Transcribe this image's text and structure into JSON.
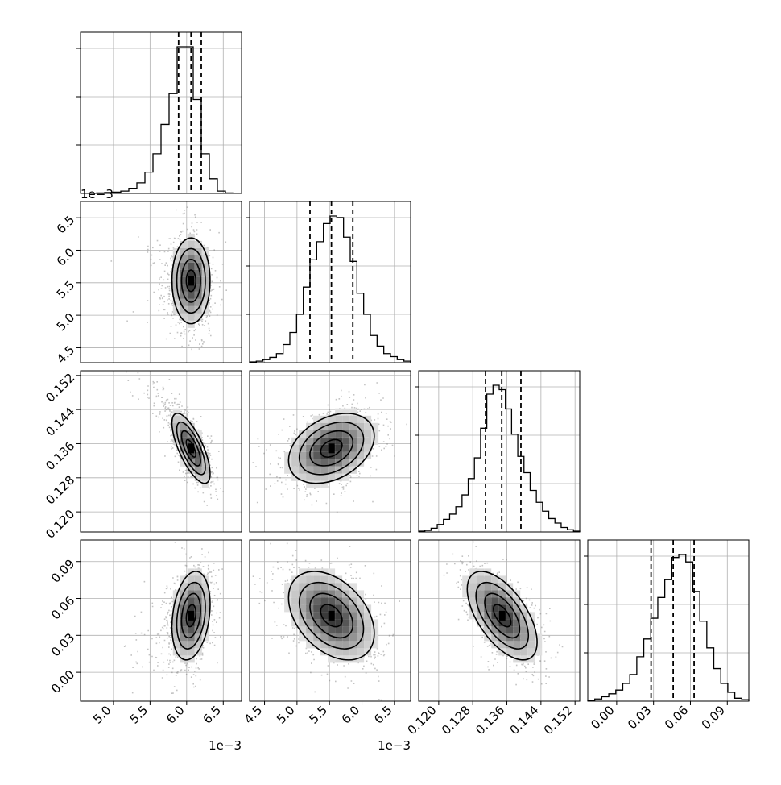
{
  "chart_data": {
    "type": "corner",
    "parameters": [
      {
        "range": [
          4.55,
          6.75
        ],
        "ticks": [
          5.0,
          5.5,
          6.0,
          6.5
        ],
        "tick_labels": [
          "5.0",
          "5.5",
          "6.0",
          "6.5"
        ],
        "offset_label": "1e−3",
        "quantiles": [
          5.89,
          6.06,
          6.2
        ],
        "mean": 6.06,
        "sd": 0.13,
        "skew": "left"
      },
      {
        "range": [
          4.27,
          6.75
        ],
        "ticks": [
          4.5,
          5.0,
          5.5,
          6.0,
          6.5
        ],
        "tick_labels": [
          "4.5",
          "5.0",
          "5.5",
          "6.0",
          "6.5"
        ],
        "offset_label": "1e−3",
        "quantiles": [
          5.2,
          5.53,
          5.86
        ],
        "mean": 5.53,
        "sd": 0.33,
        "skew": "none"
      },
      {
        "range": [
          0.1153,
          0.1531
        ],
        "ticks": [
          0.12,
          0.128,
          0.136,
          0.144,
          0.152
        ],
        "tick_labels": [
          "0.120",
          "0.128",
          "0.136",
          "0.144",
          "0.152"
        ],
        "offset_label": "",
        "quantiles": [
          0.131,
          0.1348,
          0.1393
        ],
        "mean": 0.1349,
        "sd": 0.0041,
        "skew": "none"
      },
      {
        "range": [
          -0.0235,
          0.1075
        ],
        "ticks": [
          0.0,
          0.03,
          0.06,
          0.09
        ],
        "tick_labels": [
          "0.00",
          "0.03",
          "0.06",
          "0.09"
        ],
        "offset_label": "",
        "quantiles": [
          0.028,
          0.046,
          0.063
        ],
        "mean": 0.046,
        "sd": 0.018,
        "skew": "none"
      }
    ],
    "histograms": [
      {
        "edges_range": [
          4.55,
          6.75
        ],
        "counts": [
          0.1,
          0.2,
          0.3,
          0.6,
          0.9,
          1.6,
          3.5,
          7.2,
          14.5,
          27,
          47,
          68,
          100,
          100,
          64,
          27,
          10,
          1.6,
          0.3,
          0.1
        ]
      },
      {
        "edges_range": [
          4.27,
          6.75
        ],
        "counts": [
          0.5,
          1,
          2,
          3.5,
          6,
          12,
          20,
          32,
          50,
          68,
          80,
          92,
          97,
          96,
          83,
          67,
          46,
          32,
          18,
          11,
          6,
          4,
          2,
          1
        ]
      },
      {
        "edges_range": [
          0.1153,
          0.1531
        ],
        "counts": [
          0.5,
          1,
          2.5,
          5,
          8.5,
          12,
          17,
          25,
          36,
          50,
          70,
          93,
          99,
          96,
          83,
          66,
          51,
          40,
          28,
          20,
          14,
          9,
          6,
          3,
          1.5,
          0.5
        ]
      },
      {
        "edges_range": [
          -0.0235,
          0.1075
        ],
        "counts": [
          0.5,
          1.5,
          3,
          5,
          7.5,
          12,
          18,
          30,
          42,
          56,
          70,
          82,
          97,
          99,
          94,
          74,
          54,
          36,
          22,
          12,
          6,
          2,
          1
        ]
      }
    ],
    "correlations": [
      {
        "pair": [
          1,
          0
        ],
        "rho": 0.0
      },
      {
        "pair": [
          2,
          0
        ],
        "rho": -0.72
      },
      {
        "pair": [
          2,
          1
        ],
        "rho": 0.35
      },
      {
        "pair": [
          3,
          0
        ],
        "rho": 0.25
      },
      {
        "pair": [
          3,
          1
        ],
        "rho": -0.4
      },
      {
        "pair": [
          3,
          2
        ],
        "rho": -0.6
      }
    ],
    "contour_levels": [
      0.5,
      1.0,
      1.5,
      2.0
    ],
    "grid": true,
    "legend": "none"
  }
}
